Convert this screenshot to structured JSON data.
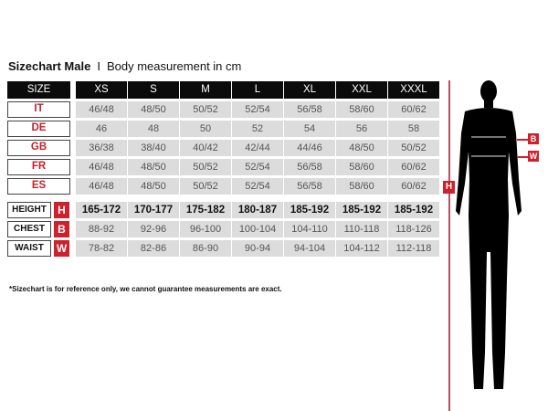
{
  "title": {
    "bold": "Sizechart Male",
    "separator": "I",
    "subtitle": "Body measurement in cm"
  },
  "header": {
    "size_label": "SIZE",
    "sizes": [
      "XS",
      "S",
      "M",
      "L",
      "XL",
      "XXL",
      "XXXL"
    ]
  },
  "regions": [
    {
      "label": "IT",
      "values": [
        "46/48",
        "48/50",
        "50/52",
        "52/54",
        "56/58",
        "58/60",
        "60/62"
      ]
    },
    {
      "label": "DE",
      "values": [
        "46",
        "48",
        "50",
        "52",
        "54",
        "56",
        "58"
      ]
    },
    {
      "label": "GB",
      "values": [
        "36/38",
        "38/40",
        "40/42",
        "42/44",
        "44/46",
        "48/50",
        "50/52"
      ]
    },
    {
      "label": "FR",
      "values": [
        "46/48",
        "48/50",
        "50/52",
        "52/54",
        "56/58",
        "58/60",
        "60/62"
      ]
    },
    {
      "label": "ES",
      "values": [
        "46/48",
        "48/50",
        "50/52",
        "52/54",
        "56/58",
        "58/60",
        "60/62"
      ]
    }
  ],
  "measurements": [
    {
      "label": "HEIGHT",
      "badge": "H",
      "values": [
        "165-172",
        "170-177",
        "175-182",
        "180-187",
        "185-192",
        "185-192",
        "185-192"
      ]
    },
    {
      "label": "CHEST",
      "badge": "B",
      "values": [
        "88-92",
        "92-96",
        "96-100",
        "100-104",
        "104-110",
        "110-118",
        "118-126"
      ]
    },
    {
      "label": "WAIST",
      "badge": "W",
      "values": [
        "78-82",
        "82-86",
        "86-90",
        "90-94",
        "94-104",
        "104-112",
        "112-118"
      ]
    }
  ],
  "figure": {
    "height_badge": "H",
    "chest_badge": "B",
    "waist_badge": "W"
  },
  "footnote": "*Sizechart is for reference only, we cannot guarantee measurements are exact.",
  "colors": {
    "accent": "#d0202c",
    "header": "#0b0b0b",
    "cell": "#dcdcdc"
  }
}
